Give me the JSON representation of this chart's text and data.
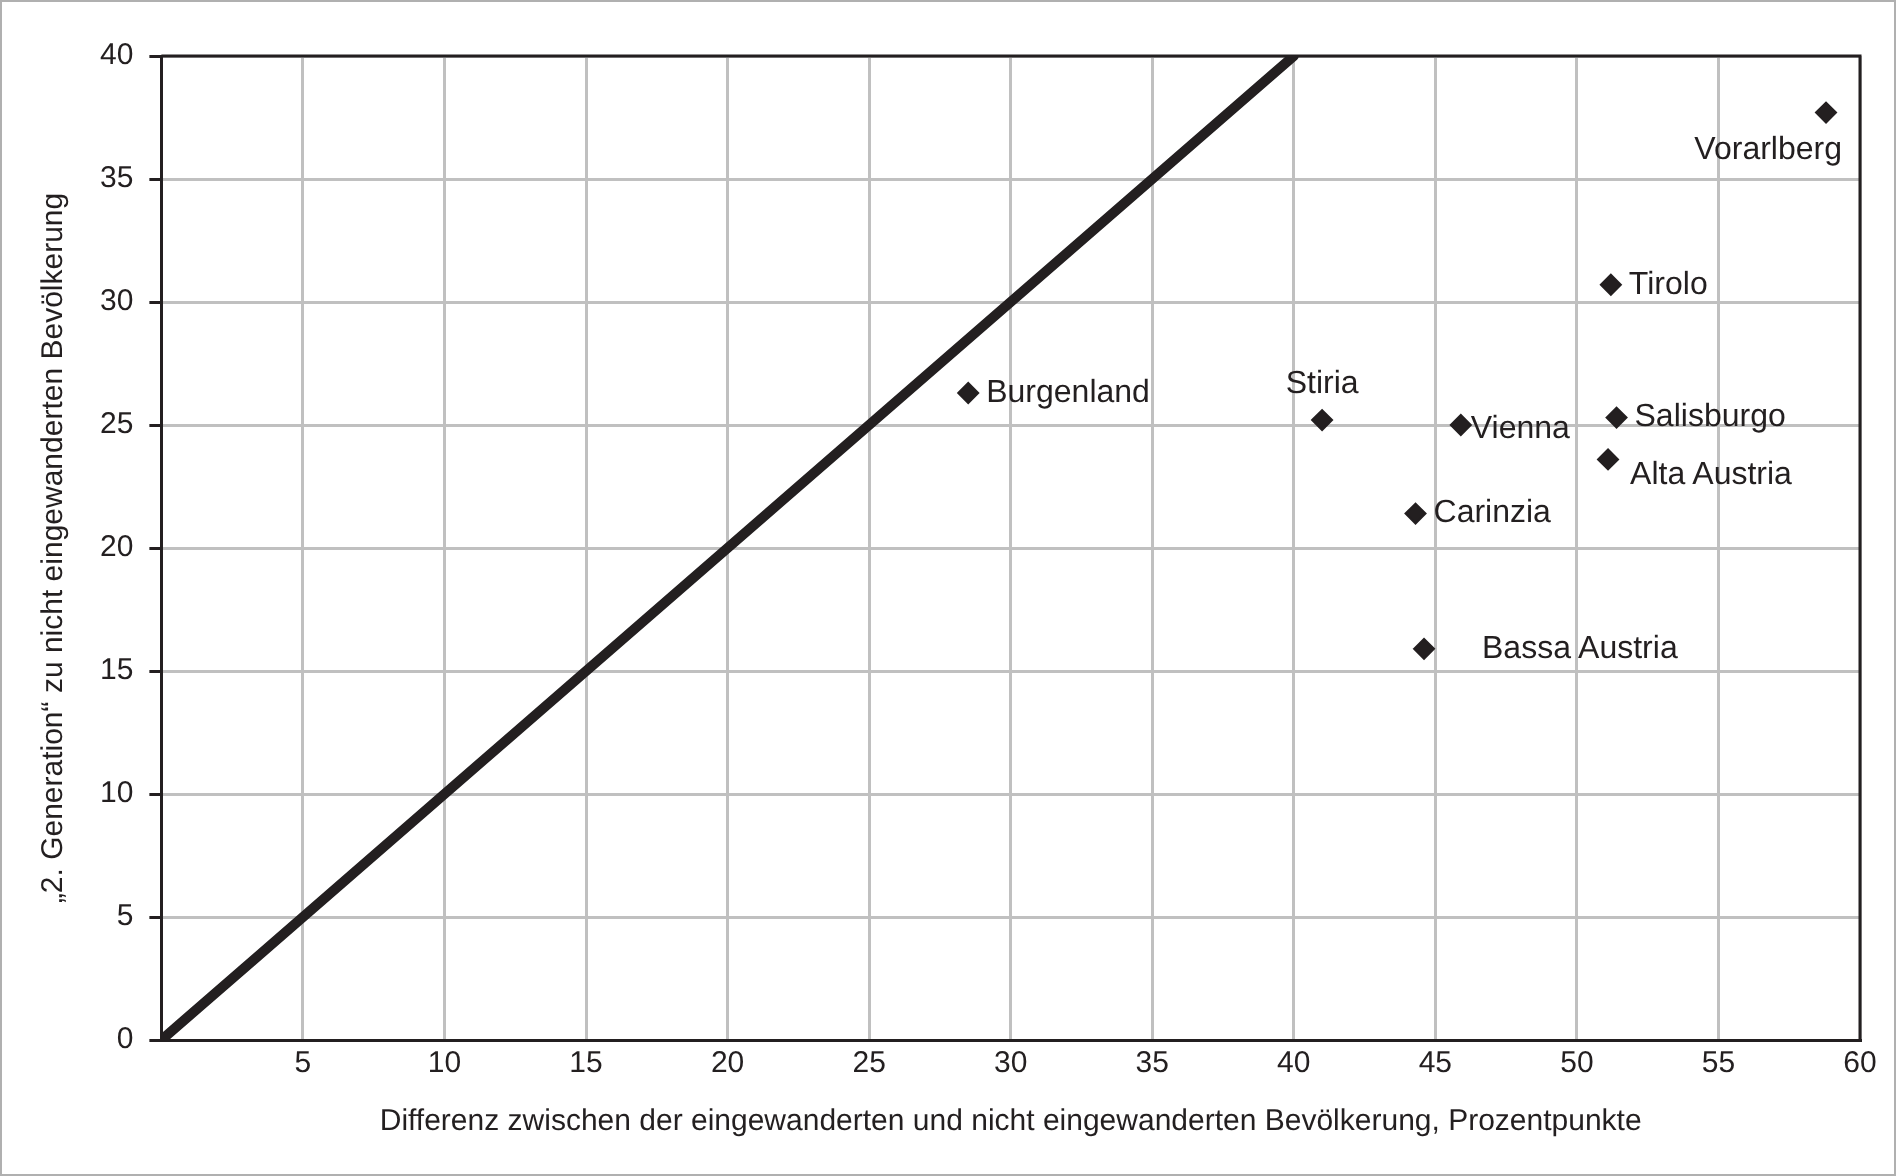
{
  "chart_data": {
    "type": "scatter",
    "xlabel": "Differenz zwischen der eingewanderten und nicht eingewanderten Bevölkerung, Prozentpunkte",
    "ylabel": "„2. Generation“ zu nicht eingewanderten Bevölkerung",
    "xlim": [
      0,
      60
    ],
    "xticks": [
      5,
      10,
      15,
      20,
      25,
      30,
      35,
      40,
      45,
      50,
      55,
      60
    ],
    "ylim": [
      0,
      40
    ],
    "yticks": [
      0,
      5,
      10,
      15,
      20,
      25,
      30,
      35,
      40
    ],
    "grid": true,
    "legend": false,
    "marker": "diamond",
    "series": [
      {
        "type": "line",
        "x": [
          0,
          40
        ],
        "values": [
          0,
          40
        ],
        "color": "#231f20",
        "marker": "none"
      },
      {
        "name": "Burgenland",
        "x": [
          28.5
        ],
        "values": [
          26.3
        ],
        "color": "#231f20"
      },
      {
        "name": "Stiria",
        "x": [
          41.0
        ],
        "values": [
          25.2
        ],
        "color": "#231f20"
      },
      {
        "name": "Vienna",
        "x": [
          45.9
        ],
        "values": [
          25.0
        ],
        "color": "#231f20"
      },
      {
        "name": "Salisburgo",
        "x": [
          51.4
        ],
        "values": [
          25.3
        ],
        "color": "#231f20"
      },
      {
        "name": "Alta Austria",
        "x": [
          51.1
        ],
        "values": [
          23.6
        ],
        "color": "#231f20"
      },
      {
        "name": "Carinzia",
        "x": [
          44.3
        ],
        "values": [
          21.4
        ],
        "color": "#231f20"
      },
      {
        "name": "Bassa Austria",
        "x": [
          44.6
        ],
        "values": [
          15.9
        ],
        "color": "#231f20"
      },
      {
        "name": "Tirolo",
        "x": [
          51.2
        ],
        "values": [
          30.7
        ],
        "color": "#231f20"
      },
      {
        "name": "Vorarlberg",
        "x": [
          58.8
        ],
        "values": [
          37.7
        ],
        "color": "#231f20"
      }
    ]
  }
}
